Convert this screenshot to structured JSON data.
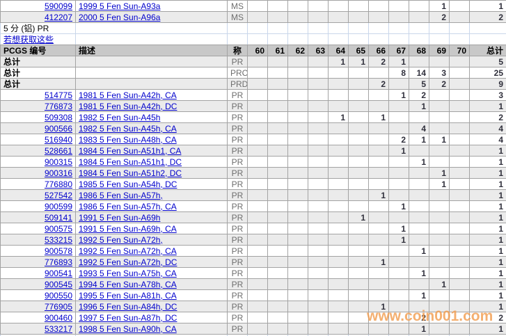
{
  "table": {
    "columns": {
      "pcgs": "PCGS 编号",
      "desc": "描述",
      "designation": "称",
      "grades": [
        "60",
        "61",
        "62",
        "63",
        "64",
        "65",
        "66",
        "67",
        "68",
        "69",
        "70"
      ],
      "total": "总计"
    },
    "top_rows": [
      {
        "pcgs": "590099",
        "desc": "1999 5 Fen Sun-A93a",
        "designation": "MS",
        "grades": {
          "69": "1"
        },
        "total": "1"
      },
      {
        "pcgs": "412207",
        "desc": "2000 5 Fen Sun-A96a",
        "designation": "MS",
        "grades": {
          "69": "2"
        },
        "total": "2"
      }
    ],
    "section": {
      "title": "5 分 (铝) PR",
      "link": "若想获取这些"
    },
    "total_rows": [
      {
        "label": "总计",
        "designation": "PR",
        "grades": {
          "64": "1",
          "65": "1",
          "66": "2",
          "67": "1"
        },
        "total": "5"
      },
      {
        "label": "总计",
        "designation": "PRC",
        "grades": {
          "67": "8",
          "68": "14",
          "69": "3"
        },
        "total": "25"
      },
      {
        "label": "总计",
        "designation": "PRD",
        "grades": {
          "66": "2",
          "68": "5",
          "69": "2"
        },
        "total": "9"
      }
    ],
    "rows": [
      {
        "pcgs": "514775",
        "desc": "1981 5 Fen Sun-A42h, CA",
        "designation": "PR",
        "grades": {
          "67": "1",
          "68": "2"
        },
        "total": "3"
      },
      {
        "pcgs": "776873",
        "desc": "1981 5 Fen Sun-A42h, DC",
        "designation": "PR",
        "grades": {
          "68": "1"
        },
        "total": "1"
      },
      {
        "pcgs": "509308",
        "desc": "1982 5 Fen Sun-A45h",
        "designation": "PR",
        "grades": {
          "64": "1",
          "66": "1"
        },
        "total": "2"
      },
      {
        "pcgs": "900566",
        "desc": "1982 5 Fen Sun-A45h, CA",
        "designation": "PR",
        "grades": {
          "68": "4"
        },
        "total": "4"
      },
      {
        "pcgs": "516940",
        "desc": "1983 5 Fen Sun-A48h, CA",
        "designation": "PR",
        "grades": {
          "67": "2",
          "68": "1",
          "69": "1"
        },
        "total": "4"
      },
      {
        "pcgs": "528661",
        "desc": "1984 5 Fen Sun-A51h1, CA",
        "designation": "PR",
        "grades": {
          "67": "1"
        },
        "total": "1"
      },
      {
        "pcgs": "900315",
        "desc": "1984 5 Fen Sun-A51h1, DC",
        "designation": "PR",
        "grades": {
          "68": "1"
        },
        "total": "1"
      },
      {
        "pcgs": "900316",
        "desc": "1984 5 Fen Sun-A51h2, DC",
        "designation": "PR",
        "grades": {
          "69": "1"
        },
        "total": "1"
      },
      {
        "pcgs": "776880",
        "desc": "1985 5 Fen Sun-A54h, DC",
        "designation": "PR",
        "grades": {
          "69": "1"
        },
        "total": "1"
      },
      {
        "pcgs": "527542",
        "desc": "1986 5 Fen Sun-A57h,",
        "designation": "PR",
        "grades": {
          "66": "1"
        },
        "total": "1"
      },
      {
        "pcgs": "900599",
        "desc": "1986 5 Fen Sun-A57h, CA",
        "designation": "PR",
        "grades": {
          "67": "1"
        },
        "total": "1"
      },
      {
        "pcgs": "509141",
        "desc": "1991 5 Fen Sun-A69h",
        "designation": "PR",
        "grades": {
          "65": "1"
        },
        "total": "1"
      },
      {
        "pcgs": "900575",
        "desc": "1991 5 Fen Sun-A69h, CA",
        "designation": "PR",
        "grades": {
          "67": "1"
        },
        "total": "1"
      },
      {
        "pcgs": "533215",
        "desc": "1992 5 Fen Sun-A72h,",
        "designation": "PR",
        "grades": {
          "67": "1"
        },
        "total": "1"
      },
      {
        "pcgs": "900578",
        "desc": "1992 5 Fen Sun-A72h, CA",
        "designation": "PR",
        "grades": {
          "68": "1"
        },
        "total": "1"
      },
      {
        "pcgs": "776893",
        "desc": "1992 5 Fen Sun-A72h, DC",
        "designation": "PR",
        "grades": {
          "66": "1"
        },
        "total": "1"
      },
      {
        "pcgs": "900541",
        "desc": "1993 5 Fen Sun-A75h, CA",
        "designation": "PR",
        "grades": {
          "68": "1"
        },
        "total": "1"
      },
      {
        "pcgs": "900545",
        "desc": "1994 5 Fen Sun-A78h, CA",
        "designation": "PR",
        "grades": {
          "69": "1"
        },
        "total": "1"
      },
      {
        "pcgs": "900550",
        "desc": "1995 5 Fen Sun-A81h, CA",
        "designation": "PR",
        "grades": {
          "68": "1"
        },
        "total": "1"
      },
      {
        "pcgs": "776905",
        "desc": "1996 5 Fen Sun-A84h, DC",
        "designation": "PR",
        "grades": {
          "66": "1"
        },
        "total": "1"
      },
      {
        "pcgs": "900460",
        "desc": "1997 5 Fen Sun-A87h, DC",
        "designation": "PR",
        "grades": {
          "68": "2"
        },
        "total": "2"
      },
      {
        "pcgs": "533217",
        "desc": "1998 5 Fen Sun-A90h, CA",
        "designation": "PR",
        "grades": {
          "68": "1"
        },
        "total": "1"
      }
    ]
  },
  "watermark": {
    "text": "www.coin001.com",
    "color": "#f29d50"
  },
  "colors": {
    "link": "#0000cc",
    "header_bg": "#c8c8c8",
    "stripe_bg": "#ebebeb",
    "grid_gray": "#a3a3a3",
    "grid_blue": "#c9d6ea",
    "designation_text": "#6e6e6e",
    "count_text": "#30303c"
  }
}
